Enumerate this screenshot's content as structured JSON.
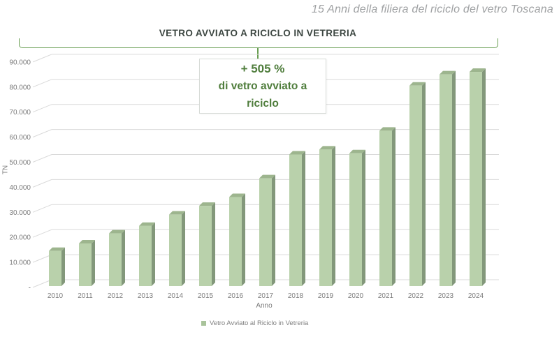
{
  "header": {
    "subtitle": "15 Anni della filiera del riciclo del vetro Toscana"
  },
  "chart": {
    "title": "VETRO AVVIATO A RICICLO IN VETRERIA",
    "annotation": {
      "line1": "+ 505 %",
      "line2": "di vetro avviato a",
      "line3": "riciclo"
    },
    "y_axis_label": "TN",
    "x_axis_label": "Anno",
    "legend": {
      "label": "Vetro Avviato al Riciclo in Vetreria"
    }
  },
  "chart_data": {
    "type": "bar",
    "style": "3d-column",
    "title": "VETRO AVVIATO A RICICLO IN VETRERIA",
    "series_name": "Vetro Avviato al Riciclo in Vetreria",
    "xlabel": "Anno",
    "ylabel": "TN",
    "ylim": [
      0,
      90000
    ],
    "grid": true,
    "legend_position": "bottom",
    "annotation": "+ 505 % di vetro avviato a riciclo",
    "categories": [
      "2010",
      "2011",
      "2012",
      "2013",
      "2014",
      "2015",
      "2016",
      "2017",
      "2018",
      "2019",
      "2020",
      "2021",
      "2022",
      "2023",
      "2024"
    ],
    "values": [
      14000,
      17000,
      21000,
      24000,
      28500,
      32000,
      35500,
      43000,
      52500,
      54500,
      53000,
      62000,
      80000,
      84500,
      85500
    ],
    "y_ticks": [
      {
        "value": 90000,
        "label": "90.000"
      },
      {
        "value": 80000,
        "label": "80.000"
      },
      {
        "value": 70000,
        "label": "70.000"
      },
      {
        "value": 60000,
        "label": "60.000"
      },
      {
        "value": 50000,
        "label": "50.000"
      },
      {
        "value": 40000,
        "label": "40.000"
      },
      {
        "value": 30000,
        "label": "30.000"
      },
      {
        "value": 20000,
        "label": "20.000"
      },
      {
        "value": 10000,
        "label": "10.000"
      },
      {
        "value": 0,
        "label": "-"
      }
    ]
  },
  "colors": {
    "bar_front": "#b9d1ab",
    "bar_side": "#83987b",
    "bar_top": "#9db58e",
    "grid": "#dadada",
    "axis_text": "#7c7c7c",
    "title_text": "#3d4742",
    "accent_green": "#699e52",
    "annotation_text": "#4f7d3c",
    "subtitle_text": "#9fa1a3",
    "legend_marker": "#a9c39b"
  }
}
